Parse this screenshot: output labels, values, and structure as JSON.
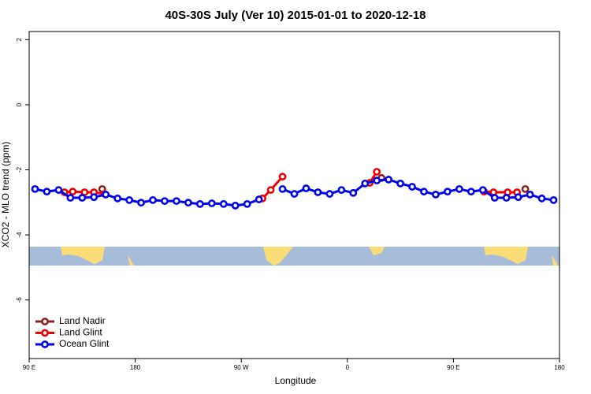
{
  "chart_data": {
    "type": "line",
    "title": "40S-30S July (Ver 10)   2015-01-01 to 2020-12-18",
    "x_label": "Longitude",
    "y_label": "XCO2 - MLO trend (ppm)",
    "xlim": [
      90,
      540
    ],
    "ylim": [
      -7.8,
      2.25
    ],
    "xticks": [
      {
        "value": 90,
        "label": "90 E"
      },
      180,
      {
        "value": 270,
        "label": "90 W"
      },
      {
        "value": 360,
        "label": "0"
      },
      {
        "value": 450,
        "label": "90 E"
      },
      {
        "value": 540,
        "label": "180"
      }
    ],
    "yticks": [
      2,
      0,
      -2,
      -4,
      -6
    ],
    "legend": "bottom-left",
    "series": [
      {
        "name": "Land Nadir",
        "color": "#8b2323",
        "x": [
          152,
          389,
          511
        ],
        "values": [
          -2.59,
          -2.25,
          -2.59
        ]
      },
      {
        "name": "Land Glint",
        "color": "#ee0000",
        "x": [
          120,
          127,
          137,
          145,
          154,
          288,
          295,
          305,
          379,
          385,
          476,
          484,
          496,
          504
        ],
        "values": [
          -2.69,
          -2.67,
          -2.69,
          -2.69,
          -2.74,
          -2.88,
          -2.62,
          -2.21,
          -2.4,
          -2.06,
          -2.67,
          -2.69,
          -2.69,
          -2.69
        ]
      },
      {
        "name": "Ocean Glint",
        "color": "#0000ee",
        "x": [
          95,
          105,
          115,
          125,
          135,
          145,
          155,
          165,
          175,
          185,
          195,
          205,
          215,
          225,
          235,
          245,
          255,
          265,
          275,
          285,
          305,
          315,
          325,
          335,
          345,
          355,
          365,
          375,
          385,
          395,
          405,
          415,
          425,
          435,
          445,
          455,
          465,
          475,
          485,
          495,
          505,
          515,
          525,
          535
        ],
        "values": [
          -2.59,
          -2.67,
          -2.62,
          -2.86,
          -2.86,
          -2.84,
          -2.76,
          -2.88,
          -2.93,
          -3.01,
          -2.93,
          -2.96,
          -2.96,
          -3.01,
          -3.05,
          -3.03,
          -3.05,
          -3.1,
          -3.05,
          -2.91,
          -2.59,
          -2.74,
          -2.57,
          -2.69,
          -2.74,
          -2.62,
          -2.71,
          -2.42,
          -2.33,
          -2.3,
          -2.42,
          -2.52,
          -2.67,
          -2.76,
          -2.67,
          -2.59,
          -2.67,
          -2.62,
          -2.86,
          -2.86,
          -2.84,
          -2.76,
          -2.88,
          -2.93
        ]
      }
    ]
  }
}
